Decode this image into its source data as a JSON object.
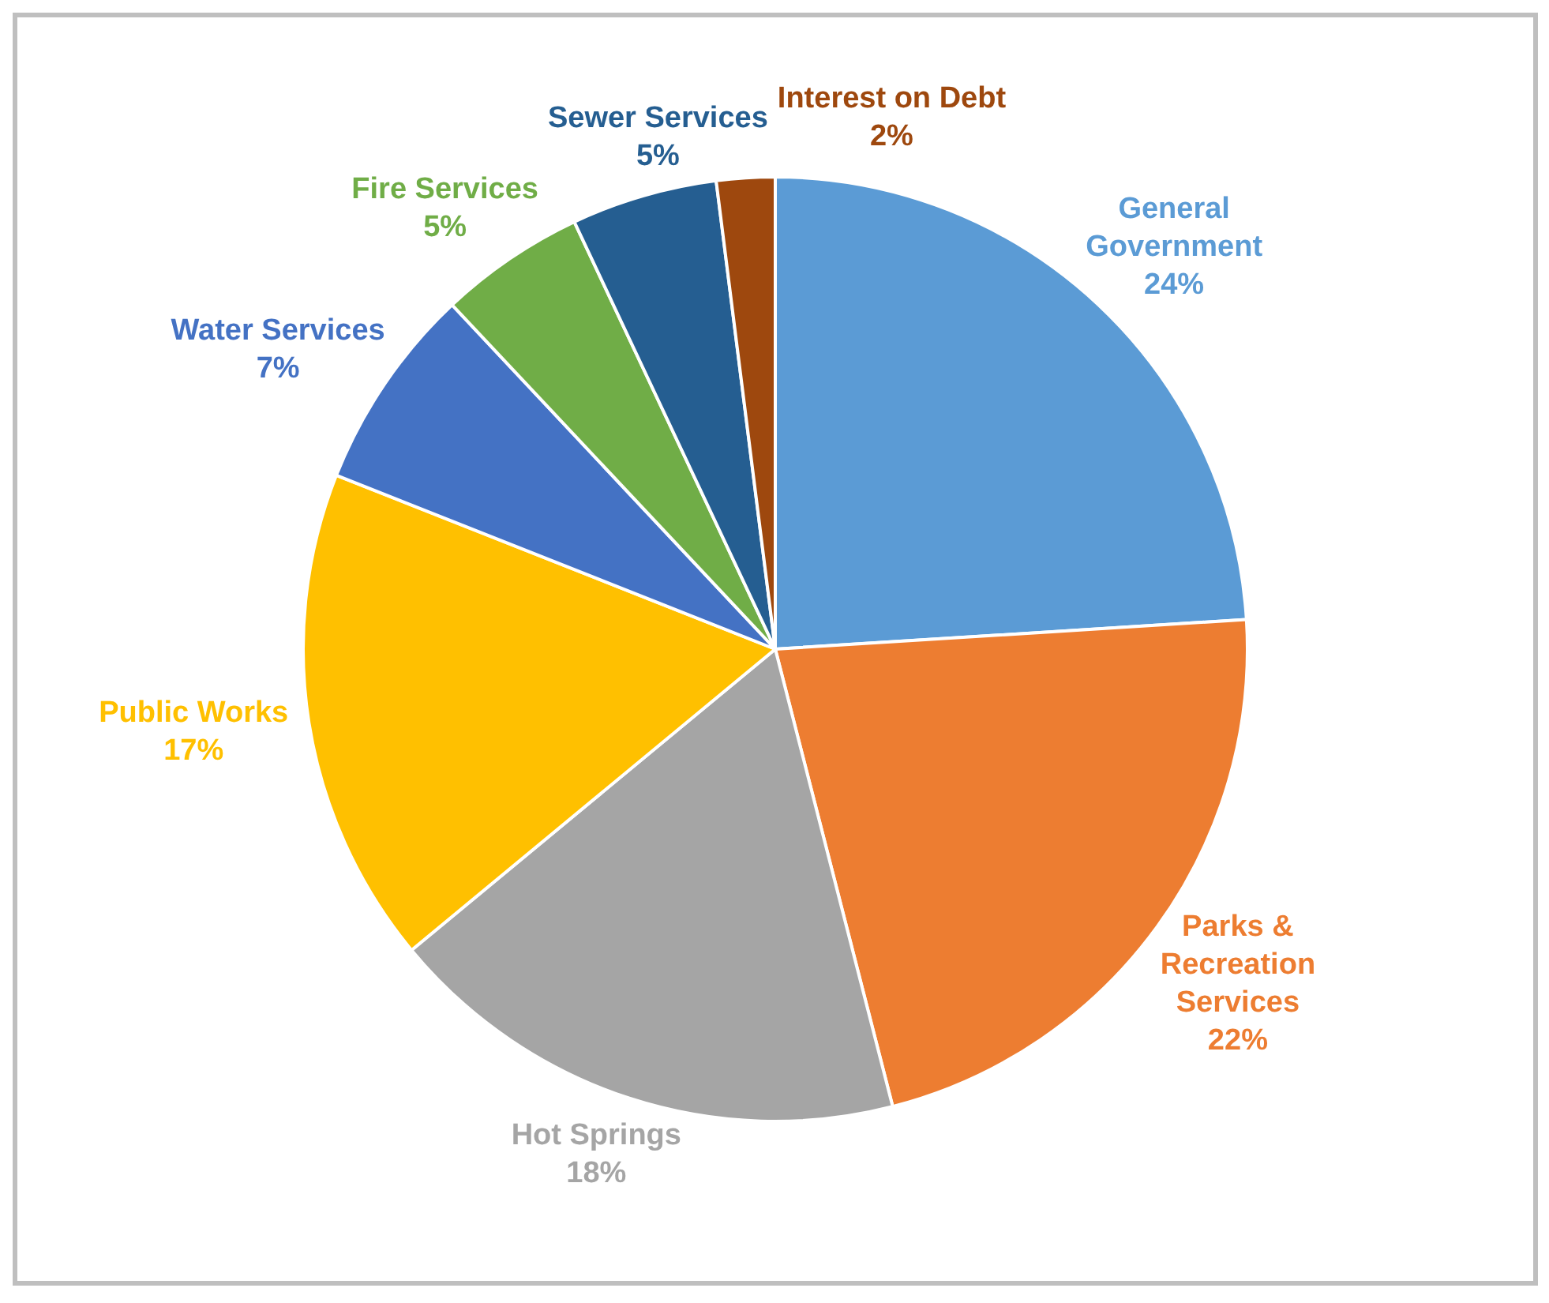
{
  "chart_data": {
    "type": "pie",
    "categories": [
      "General Government",
      "Parks & Recreation Services",
      "Hot Springs",
      "Public Works",
      "Water Services",
      "Fire Services",
      "Sewer Services",
      "Interest on Debt"
    ],
    "values": [
      24,
      22,
      18,
      17,
      7,
      5,
      5,
      2
    ],
    "value_labels": [
      "24%",
      "22%",
      "18%",
      "17%",
      "7%",
      "5%",
      "5%",
      "2%"
    ],
    "colors": [
      "#5b9bd5",
      "#ed7d31",
      "#a5a5a5",
      "#ffc000",
      "#4472c4",
      "#70ad47",
      "#255e91",
      "#9e480e"
    ],
    "legend": false
  }
}
